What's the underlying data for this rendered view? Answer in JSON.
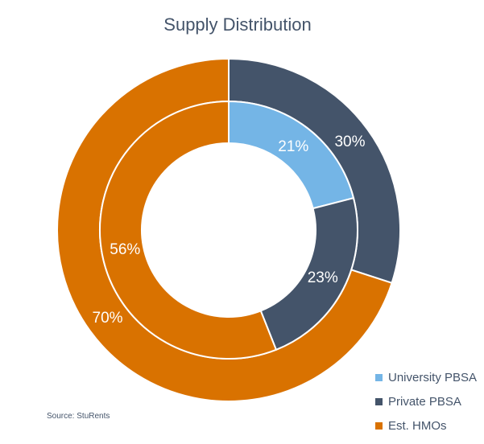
{
  "chart_data": {
    "type": "pie",
    "title": "Supply Distribution",
    "categories": [
      "University PBSA",
      "Private PBSA",
      "Est. HMOs"
    ],
    "colors": [
      "#74b5e6",
      "#44546a",
      "#d97200"
    ],
    "series": [
      {
        "ring": "outer",
        "values": [
          0,
          30,
          70
        ],
        "labels": [
          "",
          "30%",
          "70%"
        ]
      },
      {
        "ring": "inner",
        "values": [
          21,
          23,
          56
        ],
        "labels": [
          "21%",
          "23%",
          "56%"
        ]
      }
    ],
    "legend_position": "bottom-right"
  },
  "source": "Source: StuRents"
}
